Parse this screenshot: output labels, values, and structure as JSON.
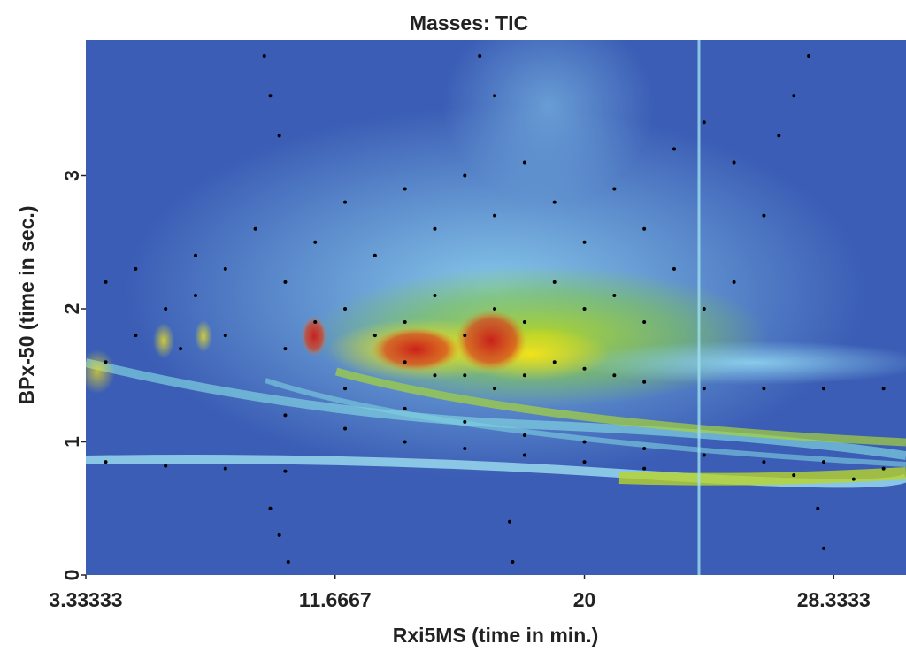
{
  "chart_data": {
    "type": "scatter",
    "title": "Masses:  TIC",
    "x_label": "Rxi5MS (time in min.)",
    "y_label": "BPx-50 (time in sec.)",
    "color": "#000000",
    "xlim": [
      3.33333,
      30.75
    ],
    "ylim": [
      0,
      4.02
    ],
    "xticks": [
      3.33333,
      11.6667,
      20,
      28.3333
    ],
    "yticks": [
      0,
      1,
      2,
      3
    ],
    "x": [
      8,
      9,
      10,
      11,
      12,
      13,
      14,
      15,
      16,
      17,
      18,
      19,
      20,
      21,
      22,
      23,
      24,
      25,
      26,
      6,
      7,
      5,
      4,
      6.5,
      14,
      15,
      16,
      17,
      18,
      19,
      20,
      21,
      22,
      24,
      26,
      28,
      30,
      12,
      14,
      16,
      18,
      20,
      22,
      24,
      26,
      28,
      30,
      10,
      12,
      14,
      16,
      18,
      20,
      22,
      4,
      6,
      8,
      10,
      27,
      29,
      9.5,
      9.8,
      10.1,
      17.5,
      17.6,
      28,
      27.8,
      9.3,
      9.5,
      9.8,
      16.5,
      17,
      27.5,
      27,
      26.5,
      14,
      15,
      16,
      17,
      18,
      19,
      20,
      21,
      22,
      23,
      24,
      25,
      12,
      13,
      11,
      10,
      8,
      7,
      5,
      4
    ],
    "values": [
      2.3,
      2.6,
      2.2,
      2.5,
      2.8,
      2.4,
      2.9,
      2.6,
      3.0,
      2.7,
      3.1,
      2.8,
      2.5,
      2.9,
      2.6,
      3.2,
      3.4,
      3.1,
      2.7,
      2.0,
      2.4,
      1.8,
      1.6,
      1.7,
      1.6,
      1.5,
      1.5,
      1.4,
      1.5,
      1.6,
      1.55,
      1.5,
      1.45,
      1.4,
      1.4,
      1.4,
      1.4,
      1.4,
      1.25,
      1.15,
      1.05,
      1.0,
      0.95,
      0.9,
      0.85,
      0.85,
      0.8,
      1.2,
      1.1,
      1.0,
      0.95,
      0.9,
      0.85,
      0.8,
      0.85,
      0.82,
      0.8,
      0.78,
      0.75,
      0.72,
      0.5,
      0.3,
      0.1,
      0.4,
      0.1,
      0.2,
      0.5,
      3.9,
      3.6,
      3.3,
      3.9,
      3.6,
      3.9,
      3.6,
      3.3,
      1.9,
      2.1,
      1.8,
      2.0,
      1.9,
      2.2,
      2.0,
      2.1,
      1.9,
      2.3,
      2.0,
      2.2,
      2.0,
      1.8,
      1.9,
      1.7,
      1.8,
      2.1,
      2.3,
      2.2
    ]
  }
}
